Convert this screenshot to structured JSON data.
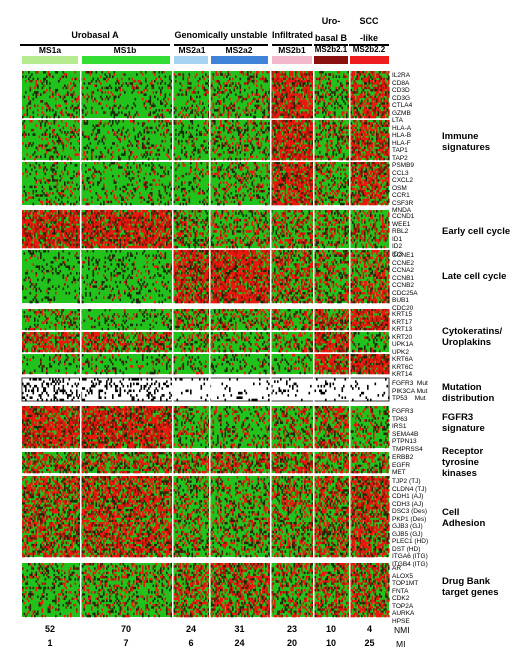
{
  "groups": [
    {
      "label": "Urobasal A"
    },
    {
      "label": "Genomically unstable"
    },
    {
      "label": "Infiltrated"
    },
    {
      "label": "Uro-\nbasal B"
    },
    {
      "label": "SCC\n-like"
    }
  ],
  "subgroups": [
    {
      "label": "MS1a",
      "color": "#b7eb8f"
    },
    {
      "label": "MS1b",
      "color": "#33dd33"
    },
    {
      "label": "MS2a1",
      "color": "#a6d2f2"
    },
    {
      "label": "MS2a2",
      "color": "#3f83d8"
    },
    {
      "label": "MS2b1",
      "color": "#f4b8cc"
    },
    {
      "label": "MS2b2.1",
      "color": "#8a1010"
    },
    {
      "label": "MS2b2.2",
      "color": "#ee1c1c"
    }
  ],
  "signatures": [
    {
      "name": "Immune\nsignatures",
      "genes": "IL2RA\nCD8A\nCD3D\nCD3G\nCTLA4\nGZMB\nLTA\nHLA-A\nHLA-B\nHLA-F\nTAP1\nTAP2\nPSMB9\nCCL3\nCXCL2\nOSM\nCCR1\nCSF3R\nMNDA"
    },
    {
      "name": "Early cell cycle",
      "genes": "CCND1\nWEE1\nRBL2\nID1\nID2\nID3"
    },
    {
      "name": "Late cell cycle",
      "genes": "CCNE1\nCCNE2\nCCNA2\nCCNB1\nCCNB2\nCDC25A\nBUB1\nCDC20"
    },
    {
      "name": "Cytokeratins/\nUroplakins",
      "genes": "KRT15\nKRT17\nKRT13\nKRT20\nUPK1A\nUPK2\nKRT6A\nKRT6C\nKRT14"
    },
    {
      "name": "Mutation\ndistribution",
      "genes": "FGFR3  Mut\nPIK3CA Mut\nTP53    Mut"
    },
    {
      "name": "FGFR3\nsignature",
      "genes": "FGFR3\nTP63\nIRS1\nSEMA4B\nPTPN13\nTMPRSS4"
    },
    {
      "name": "Receptor\ntyrosine\nkinases",
      "genes": "ERBB2\nEGFR\nMET"
    },
    {
      "name": "Cell\nAdhesion",
      "genes": "TJP2 (TJ)\nCLDN4 (TJ)\nCDH1 (AJ)\nCDH3 (AJ)\nDSC3 (Des)\nPKP1 (Des)\nGJB3 (GJ)\nGJB5 (GJ)\nPLEC1 (HD)\nDST (HD)\nITGA6 (ITG)\nITGB4 (ITG)"
    },
    {
      "name": "Drug Bank\ntarget genes",
      "genes": "AR\nALOX5\nTOP1MT\nFNTA\nCDK2\nTOP2A\nAURKA\nHPSE"
    }
  ],
  "stats": {
    "nmi_label": "NMI",
    "mi_label": "MI",
    "nmi": [
      "52",
      "70",
      "24",
      "31",
      "23",
      "10",
      "4"
    ],
    "mi": [
      "1",
      "7",
      "6",
      "24",
      "20",
      "10",
      "25"
    ]
  }
}
